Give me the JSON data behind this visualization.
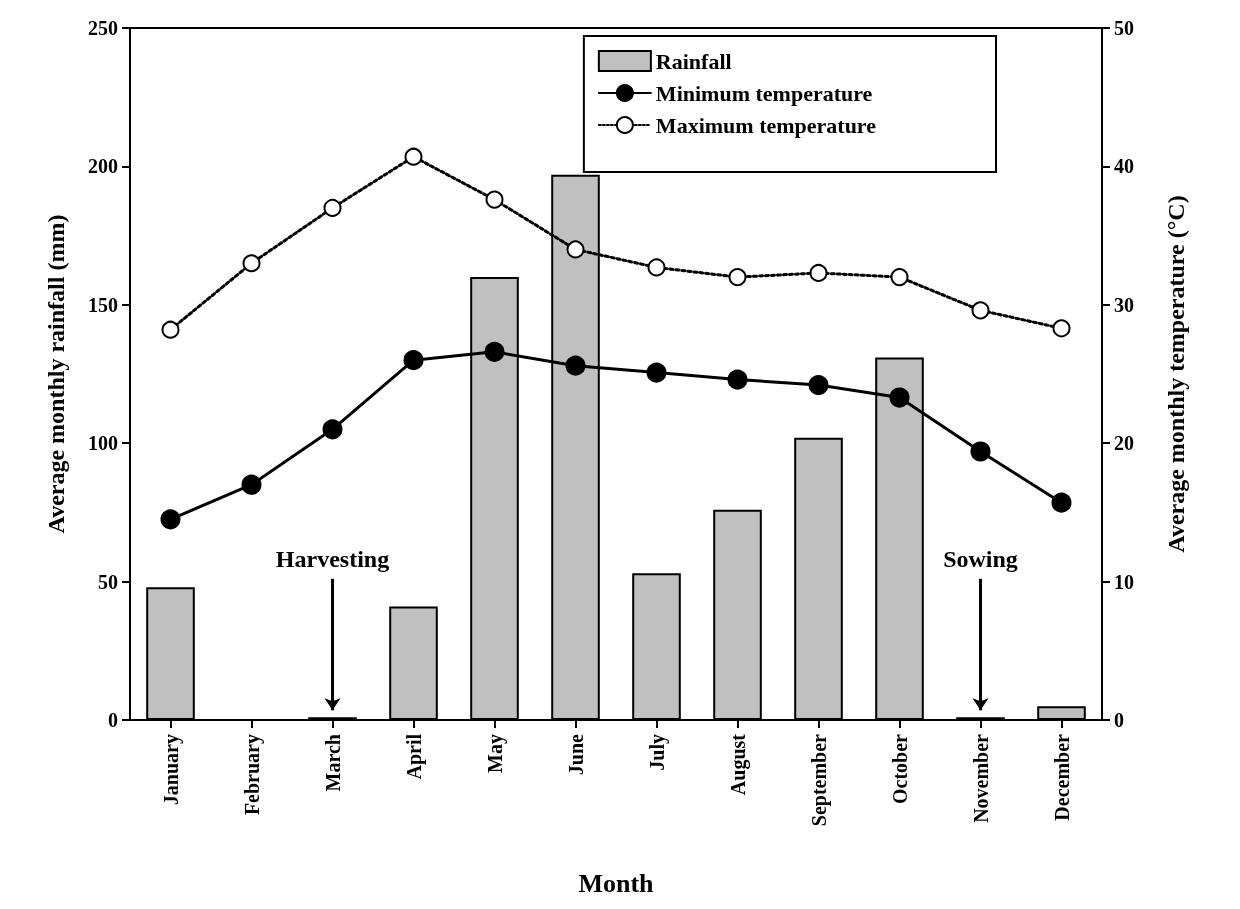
{
  "chart_data": {
    "type": "bar",
    "xlabel": "Month",
    "ylabel": "Average monthly rainfall (mm)",
    "y2label": "Average monthly temperature (°C)",
    "categories": [
      "January",
      "February",
      "March",
      "April",
      "May",
      "June",
      "July",
      "August",
      "September",
      "October",
      "November",
      "December"
    ],
    "series": [
      {
        "name": "Rainfall",
        "color": "#c0c0c0",
        "values": [
          48,
          0,
          1,
          41,
          160,
          197,
          53,
          76,
          102,
          131,
          1,
          5
        ]
      },
      {
        "name": "Minimum temperature",
        "type": "line",
        "axis": "y2",
        "color": "#000000",
        "marker": "circle",
        "line_style": "solid",
        "values": [
          14.5,
          17,
          21,
          26,
          26.6,
          25.6,
          25.1,
          24.6,
          24.2,
          23.3,
          19.4,
          15.7
        ]
      },
      {
        "name": "Maximum temperature",
        "type": "line",
        "axis": "y2",
        "color": "#000000",
        "marker": "circle",
        "line_style": "dotted",
        "values": [
          28.2,
          33,
          37,
          40.7,
          37.6,
          34,
          32.7,
          32,
          32.3,
          32,
          29.6,
          28.3
        ]
      }
    ],
    "ylim": [
      0,
      250
    ],
    "yticks": [
      0,
      50,
      100,
      150,
      200,
      250
    ],
    "y2lim": [
      0,
      50
    ],
    "y2ticks": [
      0,
      10,
      20,
      30,
      40,
      50
    ],
    "annotations": [
      {
        "text": "Harvesting",
        "x": "March",
        "y": 1
      },
      {
        "text": "Sowing",
        "x": "November",
        "y": 1
      }
    ],
    "legend": "top right",
    "grid": false
  }
}
